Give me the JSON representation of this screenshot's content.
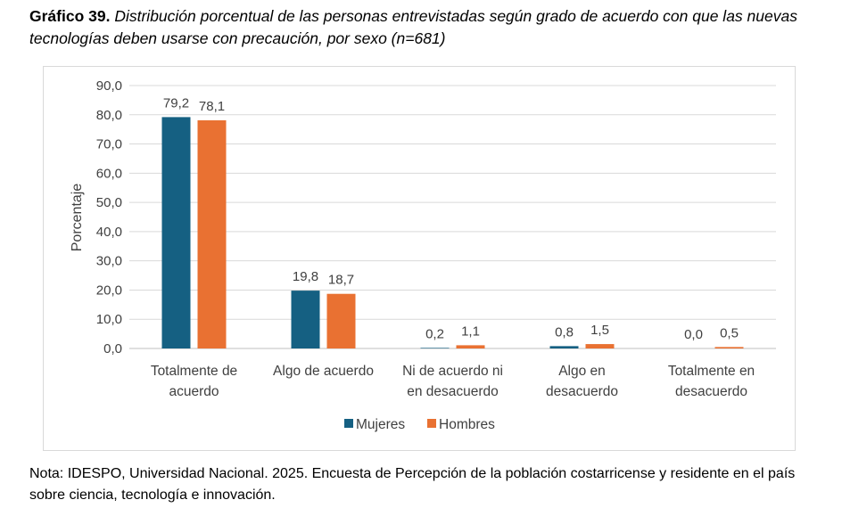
{
  "heading": {
    "label": "Gráfico  39.",
    "caption": "Distribución porcentual de las personas entrevistadas según grado de acuerdo con que las nuevas tecnologías deben usarse con precaución, por sexo (n=681)"
  },
  "note": "Nota: IDESPO, Universidad Nacional. 2025. Encuesta de Percepción de la población costarricense y residente en el país sobre ciencia, tecnología e innovación.",
  "chart_data": {
    "type": "bar",
    "title": "",
    "xlabel": "",
    "ylabel": "Porcentaje",
    "ylim": [
      0,
      90
    ],
    "yticks": [
      "0,0",
      "10,0",
      "20,0",
      "30,0",
      "40,0",
      "50,0",
      "60,0",
      "70,0",
      "80,0",
      "90,0"
    ],
    "grid": true,
    "legend_position": "bottom",
    "categories": [
      [
        "Totalmente de",
        "acuerdo"
      ],
      [
        "Algo  de acuerdo"
      ],
      [
        "Ni de acuerdo ni",
        "en desacuerdo"
      ],
      [
        "Algo en",
        "desacuerdo"
      ],
      [
        "Totalmente en",
        "desacuerdo"
      ]
    ],
    "series": [
      {
        "name": "Mujeres",
        "color": "#156082",
        "values": [
          79.2,
          19.8,
          0.2,
          0.8,
          0.0
        ],
        "labels": [
          "79,2",
          "19,8",
          "0,2",
          "0,8",
          "0,0"
        ]
      },
      {
        "name": "Hombres",
        "color": "#e97132",
        "values": [
          78.1,
          18.7,
          1.1,
          1.5,
          0.5
        ],
        "labels": [
          "78,1",
          "18,7",
          "1,1",
          "1,5",
          "0,5"
        ]
      }
    ]
  }
}
